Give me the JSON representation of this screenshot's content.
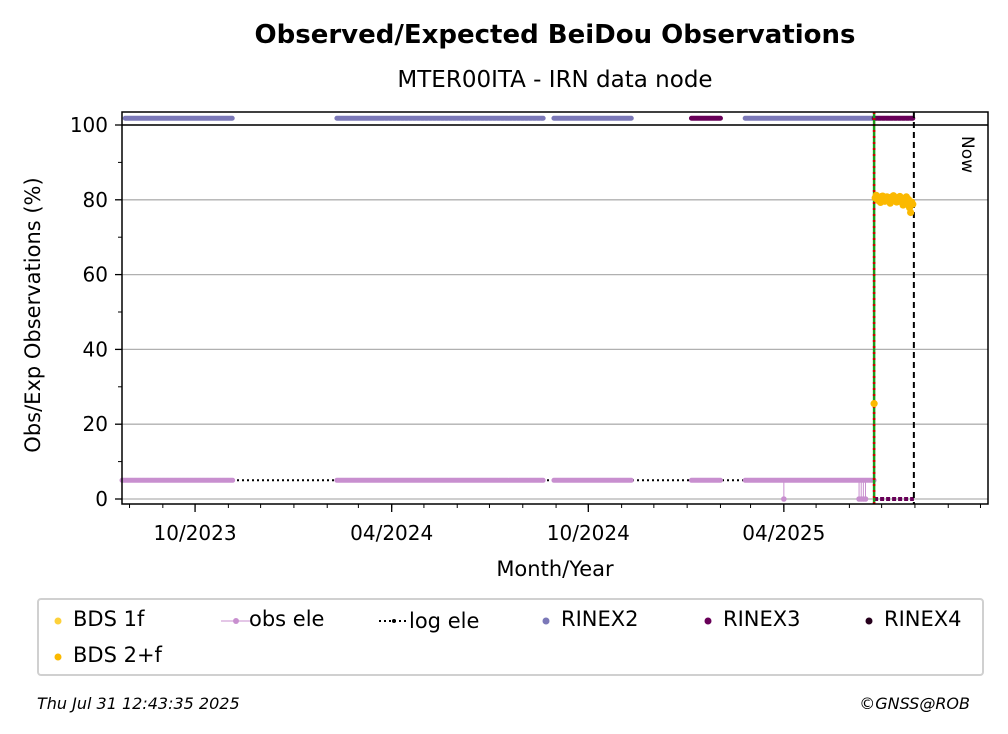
{
  "chart_data": {
    "type": "scatter",
    "title": "Observed/Expected BeiDou Observations",
    "subtitle": "MTER00ITA - IRN data node",
    "xlabel": "Month/Year",
    "ylabel": "Obs/Exp Observations (%)",
    "x_range": [
      "2023-07-25",
      "2025-10-08"
    ],
    "ylim": [
      -0.5,
      101
    ],
    "y_ticks": [
      0,
      20,
      40,
      60,
      80,
      100
    ],
    "x_ticks": [
      {
        "date": "2023-10-01",
        "label": "10/2023"
      },
      {
        "date": "2024-04-01",
        "label": "04/2024"
      },
      {
        "date": "2024-10-01",
        "label": "10/2024"
      },
      {
        "date": "2025-04-01",
        "label": "04/2025"
      }
    ],
    "grid": "horizontal",
    "now_label": "Now",
    "now_date": "2025-07-31",
    "data_start_date": "2025-06-24",
    "series": [
      {
        "name": "BDS 1f",
        "color": "#fdd13a",
        "points": []
      },
      {
        "name": "BDS 2+f",
        "color": "#fbb900",
        "points": [
          [
            "2025-06-24",
            25.5
          ],
          [
            "2025-06-25",
            80.5
          ],
          [
            "2025-06-26",
            81.2
          ],
          [
            "2025-06-27",
            80.1
          ],
          [
            "2025-06-28",
            79.8
          ],
          [
            "2025-06-29",
            80.6
          ],
          [
            "2025-06-30",
            79.3
          ],
          [
            "2025-07-01",
            80.9
          ],
          [
            "2025-07-02",
            81.0
          ],
          [
            "2025-07-03",
            80.2
          ],
          [
            "2025-07-04",
            79.6
          ],
          [
            "2025-07-05",
            80.4
          ],
          [
            "2025-07-06",
            80.8
          ],
          [
            "2025-07-07",
            79.9
          ],
          [
            "2025-07-08",
            80.3
          ],
          [
            "2025-07-09",
            79.1
          ],
          [
            "2025-07-10",
            80.7
          ],
          [
            "2025-07-11",
            80.2
          ],
          [
            "2025-07-12",
            81.1
          ],
          [
            "2025-07-13",
            79.7
          ],
          [
            "2025-07-14",
            80.5
          ],
          [
            "2025-07-15",
            79.4
          ],
          [
            "2025-07-16",
            80.6
          ],
          [
            "2025-07-17",
            80.0
          ],
          [
            "2025-07-18",
            80.9
          ],
          [
            "2025-07-19",
            79.5
          ],
          [
            "2025-07-20",
            80.3
          ],
          [
            "2025-07-21",
            78.6
          ],
          [
            "2025-07-22",
            80.4
          ],
          [
            "2025-07-23",
            79.2
          ],
          [
            "2025-07-24",
            80.8
          ],
          [
            "2025-07-25",
            79.0
          ],
          [
            "2025-07-26",
            80.1
          ],
          [
            "2025-07-27",
            77.9
          ],
          [
            "2025-07-28",
            76.6
          ],
          [
            "2025-07-29",
            79.4
          ],
          [
            "2025-07-30",
            78.8
          ]
        ]
      },
      {
        "name": "obs ele",
        "color": "#c88fcf",
        "value": 5,
        "ranges": [
          [
            "2023-07-25",
            "2023-11-05"
          ],
          [
            "2024-02-10",
            "2024-08-20"
          ],
          [
            "2024-08-30",
            "2024-11-10"
          ],
          [
            "2025-01-05",
            "2025-02-01"
          ],
          [
            "2025-02-24",
            "2025-06-24"
          ]
        ],
        "zero_points": [
          "2025-04-01",
          "2025-06-10",
          "2025-06-12",
          "2025-06-14",
          "2025-06-16"
        ]
      },
      {
        "name": "log ele",
        "color": "#000000",
        "value": 5,
        "range": [
          "2023-07-25",
          "2025-06-24"
        ]
      },
      {
        "name": "RINEX2",
        "color": "#7b78b8",
        "value": 101.8,
        "ranges": [
          [
            "2023-07-28",
            "2023-11-05"
          ],
          [
            "2024-02-10",
            "2024-08-20"
          ],
          [
            "2024-08-30",
            "2024-11-10"
          ],
          [
            "2025-02-24",
            "2025-06-24"
          ]
        ]
      },
      {
        "name": "RINEX3",
        "color": "#680058",
        "value": 101.8,
        "ranges": [
          [
            "2025-01-05",
            "2025-02-01"
          ],
          [
            "2025-06-24",
            "2025-07-30"
          ]
        ]
      },
      {
        "name": "RINEX4",
        "color": "#26001c",
        "ranges": []
      }
    ],
    "legend": {
      "placement": "bottom",
      "items": [
        {
          "label": "BDS 1f",
          "color": "#fdd13a"
        },
        {
          "label": "obs ele",
          "color": "#c88fcf"
        },
        {
          "label": "log ele",
          "color": "#000000"
        },
        {
          "label": "RINEX2",
          "color": "#7b78b8"
        },
        {
          "label": "RINEX3",
          "color": "#680058"
        },
        {
          "label": "RINEX4",
          "color": "#26001c"
        },
        {
          "label": "BDS 2+f",
          "color": "#fbb900"
        }
      ]
    }
  },
  "footer": {
    "timestamp": "Thu Jul 31 12:43:35 2025",
    "copyright": "©GNSS@ROB"
  }
}
